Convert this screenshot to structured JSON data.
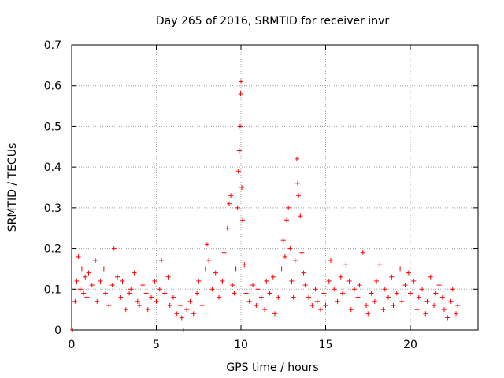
{
  "chart_data": {
    "type": "scatter",
    "title": "Day 265 of 2016, SRMTID for receiver invr",
    "xlabel": "GPS time / hours",
    "ylabel": "SRMTID / TECUs",
    "xlim": [
      0,
      24
    ],
    "ylim": [
      0,
      0.7
    ],
    "x_ticks": [
      0,
      5,
      10,
      15,
      20
    ],
    "y_ticks": [
      0,
      0.1,
      0.2,
      0.3,
      0.4,
      0.5,
      0.6,
      0.7
    ],
    "grid": true,
    "marker": "plus",
    "color": "#ff0000",
    "series": [
      {
        "name": "SRMTID",
        "points": [
          [
            0.05,
            0.0
          ],
          [
            0.2,
            0.07
          ],
          [
            0.3,
            0.12
          ],
          [
            0.4,
            0.18
          ],
          [
            0.5,
            0.1
          ],
          [
            0.6,
            0.15
          ],
          [
            0.7,
            0.09
          ],
          [
            0.8,
            0.13
          ],
          [
            0.9,
            0.08
          ],
          [
            1.0,
            0.14
          ],
          [
            1.2,
            0.11
          ],
          [
            1.4,
            0.17
          ],
          [
            1.5,
            0.07
          ],
          [
            1.7,
            0.12
          ],
          [
            1.9,
            0.15
          ],
          [
            2.0,
            0.09
          ],
          [
            2.2,
            0.06
          ],
          [
            2.4,
            0.11
          ],
          [
            2.5,
            0.2
          ],
          [
            2.7,
            0.13
          ],
          [
            2.9,
            0.08
          ],
          [
            3.0,
            0.12
          ],
          [
            3.2,
            0.05
          ],
          [
            3.4,
            0.09
          ],
          [
            3.5,
            0.1
          ],
          [
            3.7,
            0.14
          ],
          [
            3.9,
            0.07
          ],
          [
            4.0,
            0.06
          ],
          [
            4.2,
            0.11
          ],
          [
            4.4,
            0.09
          ],
          [
            4.5,
            0.05
          ],
          [
            4.7,
            0.08
          ],
          [
            4.9,
            0.12
          ],
          [
            5.0,
            0.07
          ],
          [
            5.2,
            0.1
          ],
          [
            5.3,
            0.17
          ],
          [
            5.5,
            0.09
          ],
          [
            5.7,
            0.13
          ],
          [
            5.8,
            0.06
          ],
          [
            6.0,
            0.08
          ],
          [
            6.2,
            0.04
          ],
          [
            6.4,
            0.06
          ],
          [
            6.5,
            0.03
          ],
          [
            6.6,
            0.0
          ],
          [
            6.8,
            0.05
          ],
          [
            7.0,
            0.07
          ],
          [
            7.2,
            0.04
          ],
          [
            7.4,
            0.09
          ],
          [
            7.5,
            0.12
          ],
          [
            7.7,
            0.06
          ],
          [
            7.9,
            0.15
          ],
          [
            8.0,
            0.21
          ],
          [
            8.1,
            0.17
          ],
          [
            8.3,
            0.1
          ],
          [
            8.5,
            0.14
          ],
          [
            8.7,
            0.08
          ],
          [
            8.9,
            0.12
          ],
          [
            9.0,
            0.19
          ],
          [
            9.2,
            0.25
          ],
          [
            9.3,
            0.31
          ],
          [
            9.4,
            0.33
          ],
          [
            9.5,
            0.11
          ],
          [
            9.6,
            0.09
          ],
          [
            9.7,
            0.15
          ],
          [
            9.8,
            0.3
          ],
          [
            9.85,
            0.39
          ],
          [
            9.9,
            0.44
          ],
          [
            9.95,
            0.5
          ],
          [
            9.98,
            0.58
          ],
          [
            10.0,
            0.61
          ],
          [
            10.05,
            0.35
          ],
          [
            10.1,
            0.27
          ],
          [
            10.2,
            0.16
          ],
          [
            10.3,
            0.09
          ],
          [
            10.5,
            0.07
          ],
          [
            10.7,
            0.11
          ],
          [
            10.9,
            0.06
          ],
          [
            11.0,
            0.1
          ],
          [
            11.2,
            0.08
          ],
          [
            11.4,
            0.05
          ],
          [
            11.5,
            0.12
          ],
          [
            11.7,
            0.09
          ],
          [
            11.9,
            0.13
          ],
          [
            12.0,
            0.04
          ],
          [
            12.2,
            0.08
          ],
          [
            12.4,
            0.15
          ],
          [
            12.5,
            0.22
          ],
          [
            12.6,
            0.18
          ],
          [
            12.7,
            0.27
          ],
          [
            12.8,
            0.3
          ],
          [
            12.9,
            0.2
          ],
          [
            13.0,
            0.12
          ],
          [
            13.1,
            0.08
          ],
          [
            13.2,
            0.17
          ],
          [
            13.3,
            0.42
          ],
          [
            13.35,
            0.36
          ],
          [
            13.4,
            0.33
          ],
          [
            13.5,
            0.28
          ],
          [
            13.6,
            0.19
          ],
          [
            13.7,
            0.14
          ],
          [
            13.8,
            0.11
          ],
          [
            14.0,
            0.08
          ],
          [
            14.2,
            0.06
          ],
          [
            14.4,
            0.1
          ],
          [
            14.5,
            0.07
          ],
          [
            14.7,
            0.05
          ],
          [
            14.9,
            0.09
          ],
          [
            15.0,
            0.06
          ],
          [
            15.2,
            0.12
          ],
          [
            15.3,
            0.17
          ],
          [
            15.5,
            0.1
          ],
          [
            15.7,
            0.07
          ],
          [
            15.9,
            0.13
          ],
          [
            16.0,
            0.09
          ],
          [
            16.2,
            0.16
          ],
          [
            16.4,
            0.12
          ],
          [
            16.5,
            0.05
          ],
          [
            16.7,
            0.1
          ],
          [
            16.9,
            0.08
          ],
          [
            17.0,
            0.11
          ],
          [
            17.2,
            0.19
          ],
          [
            17.4,
            0.06
          ],
          [
            17.5,
            0.04
          ],
          [
            17.7,
            0.09
          ],
          [
            17.9,
            0.07
          ],
          [
            18.0,
            0.12
          ],
          [
            18.2,
            0.16
          ],
          [
            18.4,
            0.05
          ],
          [
            18.5,
            0.1
          ],
          [
            18.7,
            0.08
          ],
          [
            18.9,
            0.13
          ],
          [
            19.0,
            0.06
          ],
          [
            19.2,
            0.09
          ],
          [
            19.4,
            0.15
          ],
          [
            19.5,
            0.07
          ],
          [
            19.7,
            0.11
          ],
          [
            19.9,
            0.14
          ],
          [
            20.0,
            0.09
          ],
          [
            20.2,
            0.12
          ],
          [
            20.4,
            0.05
          ],
          [
            20.5,
            0.08
          ],
          [
            20.7,
            0.1
          ],
          [
            20.9,
            0.04
          ],
          [
            21.0,
            0.07
          ],
          [
            21.2,
            0.13
          ],
          [
            21.4,
            0.06
          ],
          [
            21.5,
            0.09
          ],
          [
            21.7,
            0.11
          ],
          [
            21.9,
            0.08
          ],
          [
            22.0,
            0.05
          ],
          [
            22.2,
            0.03
          ],
          [
            22.4,
            0.07
          ],
          [
            22.5,
            0.1
          ],
          [
            22.7,
            0.04
          ],
          [
            22.8,
            0.06
          ]
        ]
      }
    ]
  }
}
